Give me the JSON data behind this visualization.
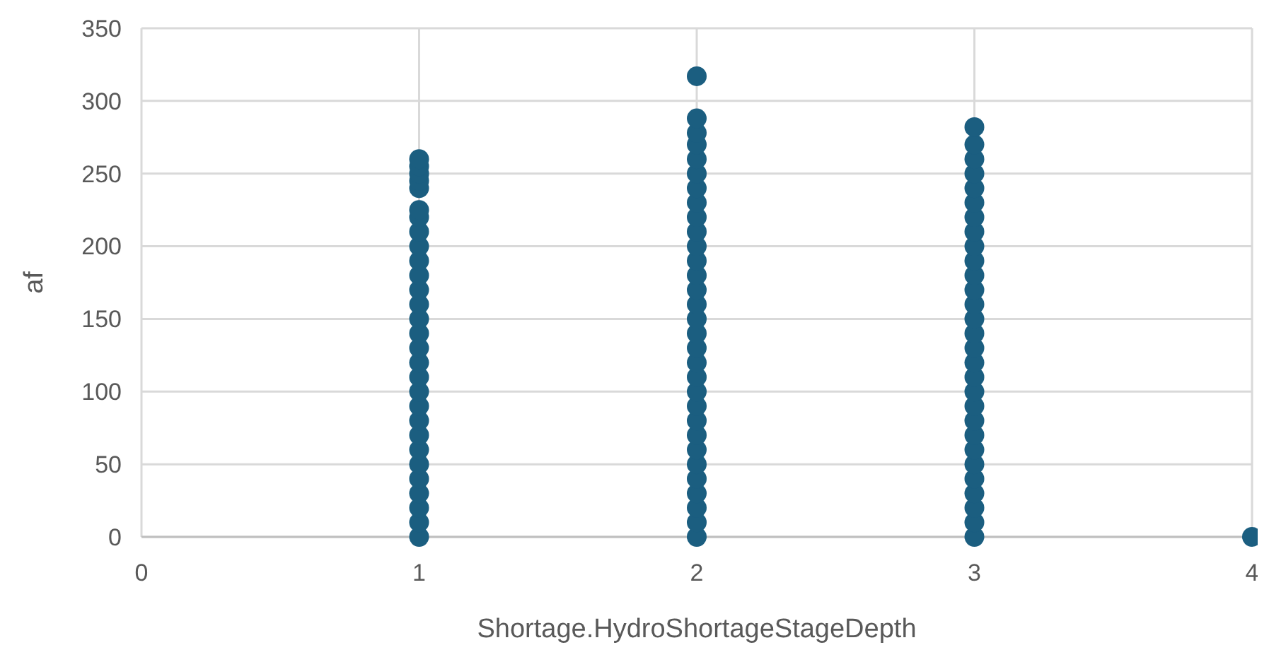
{
  "chart_data": {
    "type": "scatter",
    "xlabel": "Shortage.HydroShortageStageDepth",
    "ylabel": "af",
    "xlim": [
      0,
      4
    ],
    "xticks": [
      0,
      1,
      2,
      3,
      4
    ],
    "ylim": [
      0,
      350
    ],
    "yticks": [
      0,
      50,
      100,
      150,
      200,
      250,
      300,
      350
    ],
    "grid": true,
    "marker": "circle",
    "series": [
      {
        "color": "#1b5e80",
        "x": [
          1,
          1,
          1,
          1,
          1,
          1,
          1,
          1,
          1,
          1,
          1,
          1,
          1,
          1,
          1,
          1,
          1,
          1,
          1,
          1,
          1,
          1,
          1,
          1,
          1,
          1,
          1,
          1,
          1,
          2,
          2,
          2,
          2,
          2,
          2,
          2,
          2,
          2,
          2,
          2,
          2,
          2,
          2,
          2,
          2,
          2,
          2,
          2,
          2,
          2,
          2,
          2,
          2,
          2,
          2,
          2,
          2,
          2,
          2,
          2,
          3,
          3,
          3,
          3,
          3,
          3,
          3,
          3,
          3,
          3,
          3,
          3,
          3,
          3,
          3,
          3,
          3,
          3,
          3,
          3,
          3,
          3,
          3,
          3,
          3,
          3,
          3,
          3,
          3,
          4
        ],
        "values": [
          0,
          10,
          20,
          30,
          40,
          50,
          60,
          70,
          80,
          90,
          100,
          110,
          120,
          130,
          140,
          150,
          160,
          170,
          180,
          190,
          200,
          210,
          220,
          225,
          240,
          245,
          250,
          255,
          260,
          0,
          10,
          20,
          30,
          40,
          50,
          60,
          70,
          80,
          90,
          100,
          110,
          120,
          130,
          140,
          150,
          160,
          170,
          180,
          190,
          200,
          210,
          220,
          230,
          240,
          250,
          260,
          270,
          278,
          288,
          317,
          0,
          10,
          20,
          30,
          40,
          50,
          60,
          70,
          80,
          90,
          100,
          110,
          120,
          130,
          140,
          150,
          160,
          170,
          180,
          190,
          200,
          210,
          220,
          230,
          240,
          250,
          260,
          270,
          282,
          0
        ]
      }
    ]
  }
}
